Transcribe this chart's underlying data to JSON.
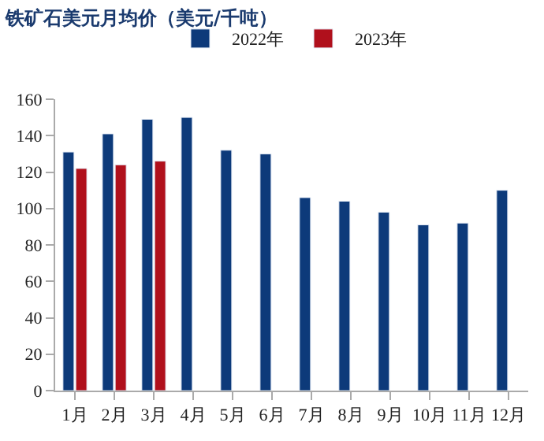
{
  "chart_data": {
    "type": "bar",
    "title": "铁矿石美元月均价（美元/千吨）",
    "categories": [
      "1月",
      "2月",
      "3月",
      "4月",
      "5月",
      "6月",
      "7月",
      "8月",
      "9月",
      "10月",
      "11月",
      "12月"
    ],
    "series": [
      {
        "name": "2022年",
        "color": "#0d3a7a",
        "values": [
          131,
          141,
          149,
          150,
          132,
          130,
          106,
          104,
          98,
          91,
          92,
          110
        ]
      },
      {
        "name": "2023年",
        "color": "#b0101c",
        "values": [
          122,
          124,
          126,
          null,
          null,
          null,
          null,
          null,
          null,
          null,
          null,
          null
        ]
      }
    ],
    "ylim": [
      0,
      160
    ],
    "yticks": [
      0,
      20,
      40,
      60,
      80,
      100,
      120,
      140,
      160
    ],
    "grid": false,
    "legend": "top"
  }
}
